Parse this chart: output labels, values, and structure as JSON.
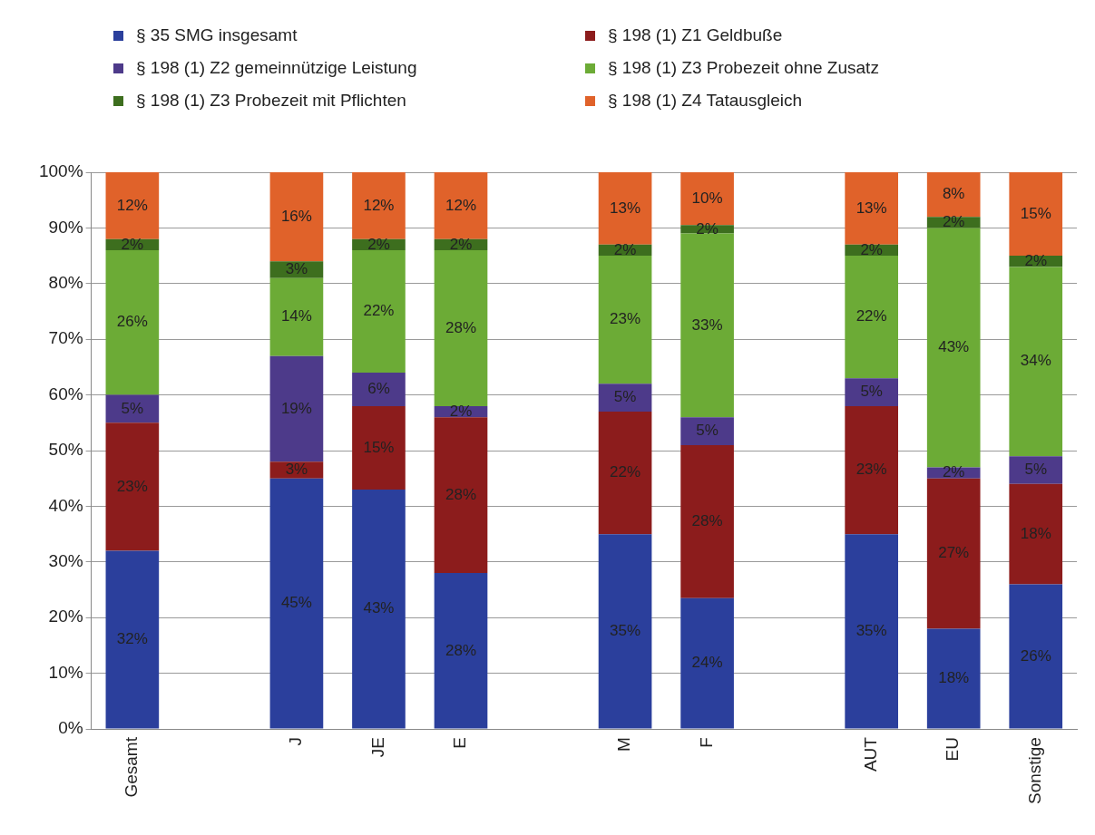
{
  "chart_data": {
    "type": "bar",
    "stacked": true,
    "categories": [
      "Gesamt",
      null,
      "J",
      "JE",
      "E",
      null,
      "M",
      "F",
      null,
      "AUT",
      "EU",
      "Sonstige"
    ],
    "series": [
      {
        "name": "§ 35 SMG insgesamt",
        "color": "#2b3f9c",
        "values": [
          32,
          null,
          45,
          43,
          28,
          null,
          35,
          23.5,
          null,
          35,
          18,
          26
        ],
        "value_labels": [
          "32%",
          null,
          "45%",
          "43%",
          "28%",
          null,
          "35%",
          "24%",
          null,
          "35%",
          "18%",
          "26%"
        ]
      },
      {
        "name": "§ 198 (1) Z1 Geldbuße",
        "color": "#8c1c1c",
        "values": [
          23,
          null,
          3,
          15,
          28,
          null,
          22,
          27.5,
          null,
          23,
          27,
          18
        ],
        "value_labels": [
          "23%",
          null,
          "3%",
          "15%",
          "28%",
          null,
          "22%",
          "28%",
          null,
          "23%",
          "27%",
          "18%"
        ]
      },
      {
        "name": "§ 198 (1) Z2 gemeinnützige Leistung",
        "color": "#4d3a8a",
        "values": [
          5,
          null,
          19,
          6,
          2,
          null,
          5,
          5,
          null,
          5,
          2,
          5
        ],
        "value_labels": [
          "5%",
          null,
          "19%",
          "6%",
          "2%",
          null,
          "5%",
          "5%",
          null,
          "5%",
          "2%",
          "5%"
        ]
      },
      {
        "name": "§ 198 (1) Z3 Probezeit ohne Zusatz",
        "color": "#6cab36",
        "values": [
          26,
          null,
          14,
          22,
          28,
          null,
          23,
          33,
          null,
          22,
          43,
          34
        ],
        "value_labels": [
          "26%",
          null,
          "14%",
          "22%",
          "28%",
          null,
          "23%",
          "33%",
          null,
          "22%",
          "43%",
          "34%"
        ]
      },
      {
        "name": "§ 198 (1) Z3 Probezeit mit Pflichten",
        "color": "#3d6e1e",
        "values": [
          2,
          null,
          3,
          2,
          2,
          null,
          2,
          1.5,
          null,
          2,
          2,
          2
        ],
        "value_labels": [
          "2%",
          null,
          "3%",
          "2%",
          "2%",
          null,
          "2%",
          "2%",
          null,
          "2%",
          "2%",
          "2%"
        ]
      },
      {
        "name": "§ 198 (1) Z4 Tatausgleich",
        "color": "#e0622a",
        "values": [
          12,
          null,
          16,
          12,
          12,
          null,
          13,
          9.5,
          null,
          13,
          8,
          15
        ],
        "value_labels": [
          "12%",
          null,
          "16%",
          "12%",
          "12%",
          null,
          "13%",
          "10%",
          null,
          "13%",
          "8%",
          "15%"
        ]
      }
    ],
    "ylim": [
      0,
      100
    ],
    "yticks": [
      {
        "value": 0,
        "label": "0%"
      },
      {
        "value": 10,
        "label": "10%"
      },
      {
        "value": 20,
        "label": "20%"
      },
      {
        "value": 30,
        "label": "30%"
      },
      {
        "value": 40,
        "label": "40%"
      },
      {
        "value": 50,
        "label": "50%"
      },
      {
        "value": 60,
        "label": "60%"
      },
      {
        "value": 70,
        "label": "70%"
      },
      {
        "value": 80,
        "label": "80%"
      },
      {
        "value": 90,
        "label": "90%"
      },
      {
        "value": 100,
        "label": "100%"
      }
    ],
    "grid": "y",
    "legend": "top"
  }
}
